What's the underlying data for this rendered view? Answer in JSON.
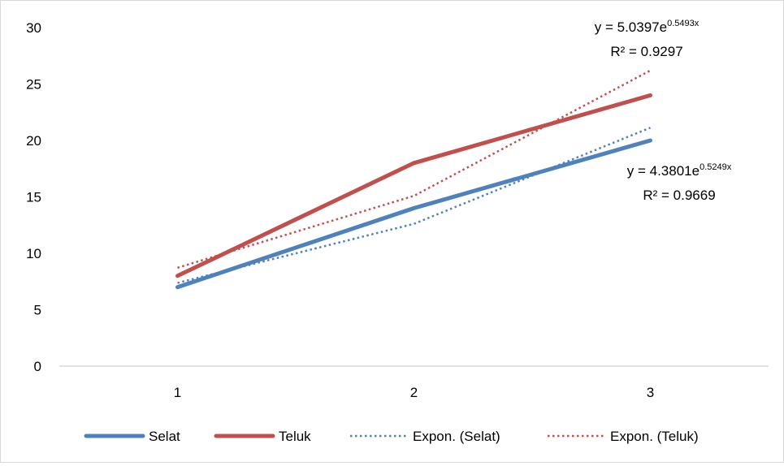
{
  "chart_data": {
    "type": "line",
    "categories": [
      "1",
      "2",
      "3"
    ],
    "ylim": [
      0,
      30
    ],
    "yticks": [
      "0",
      "5",
      "10",
      "15",
      "20",
      "25",
      "30"
    ],
    "grid": false,
    "legend_position": "bottom",
    "series": [
      {
        "name": "Selat",
        "values": [
          7,
          14,
          20
        ],
        "color": "#4f81bd",
        "style": "solid"
      },
      {
        "name": "Teluk",
        "values": [
          8,
          18,
          24
        ],
        "color": "#c0504d",
        "style": "solid"
      },
      {
        "name": "Expon. (Selat)",
        "values": [
          7.38,
          12.61,
          21.13
        ],
        "color": "#4f81bd",
        "style": "dotted",
        "trendline": true
      },
      {
        "name": "Expon. (Teluk)",
        "values": [
          8.72,
          15.09,
          26.2
        ],
        "color": "#c0504d",
        "style": "dotted",
        "trendline": true
      }
    ],
    "annotations": [
      {
        "series": "Expon. (Teluk)",
        "equation_prefix": "y = 5.0397e",
        "exponent": "0.5493x",
        "r2": "R² = 0.9297"
      },
      {
        "series": "Expon. (Selat)",
        "equation_prefix": "y = 4.3801e",
        "exponent": "0.5249x",
        "r2": "R² = 0.9669"
      }
    ]
  }
}
